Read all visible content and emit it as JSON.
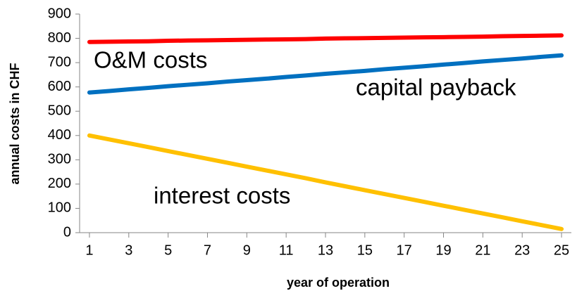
{
  "chart_data": {
    "type": "line",
    "x": [
      1,
      2,
      3,
      4,
      5,
      6,
      7,
      8,
      9,
      10,
      11,
      12,
      13,
      14,
      15,
      16,
      17,
      18,
      19,
      20,
      21,
      22,
      23,
      24,
      25
    ],
    "series": [
      {
        "name": "O&M costs",
        "color": "#ff0000",
        "values": [
          785,
          786,
          787,
          788,
          790,
          791,
          792,
          793,
          794,
          795,
          796,
          797,
          799,
          800,
          801,
          802,
          803,
          804,
          805,
          806,
          807,
          809,
          810,
          811,
          812
        ]
      },
      {
        "name": "capital payback",
        "color": "#0070c0",
        "values": [
          577,
          583,
          590,
          596,
          603,
          609,
          615,
          622,
          628,
          634,
          641,
          647,
          654,
          660,
          666,
          673,
          679,
          685,
          692,
          698,
          705,
          711,
          717,
          724,
          730
        ]
      },
      {
        "name": "interest costs",
        "color": "#ffc000",
        "values": [
          400,
          384,
          368,
          352,
          336,
          320,
          304,
          288,
          272,
          256,
          240,
          224,
          207,
          191,
          175,
          159,
          143,
          127,
          111,
          95,
          79,
          63,
          47,
          31,
          15
        ]
      }
    ],
    "x_label": "year of operation",
    "y_label": "annual costs in CHF",
    "xlim": [
      0.5,
      25.5
    ],
    "xticks": [
      1,
      3,
      5,
      7,
      9,
      11,
      13,
      15,
      17,
      19,
      21,
      23,
      25
    ],
    "ylim": [
      0,
      900
    ],
    "yticks": [
      0,
      100,
      200,
      300,
      400,
      500,
      600,
      700,
      800,
      900
    ],
    "grid": false
  }
}
